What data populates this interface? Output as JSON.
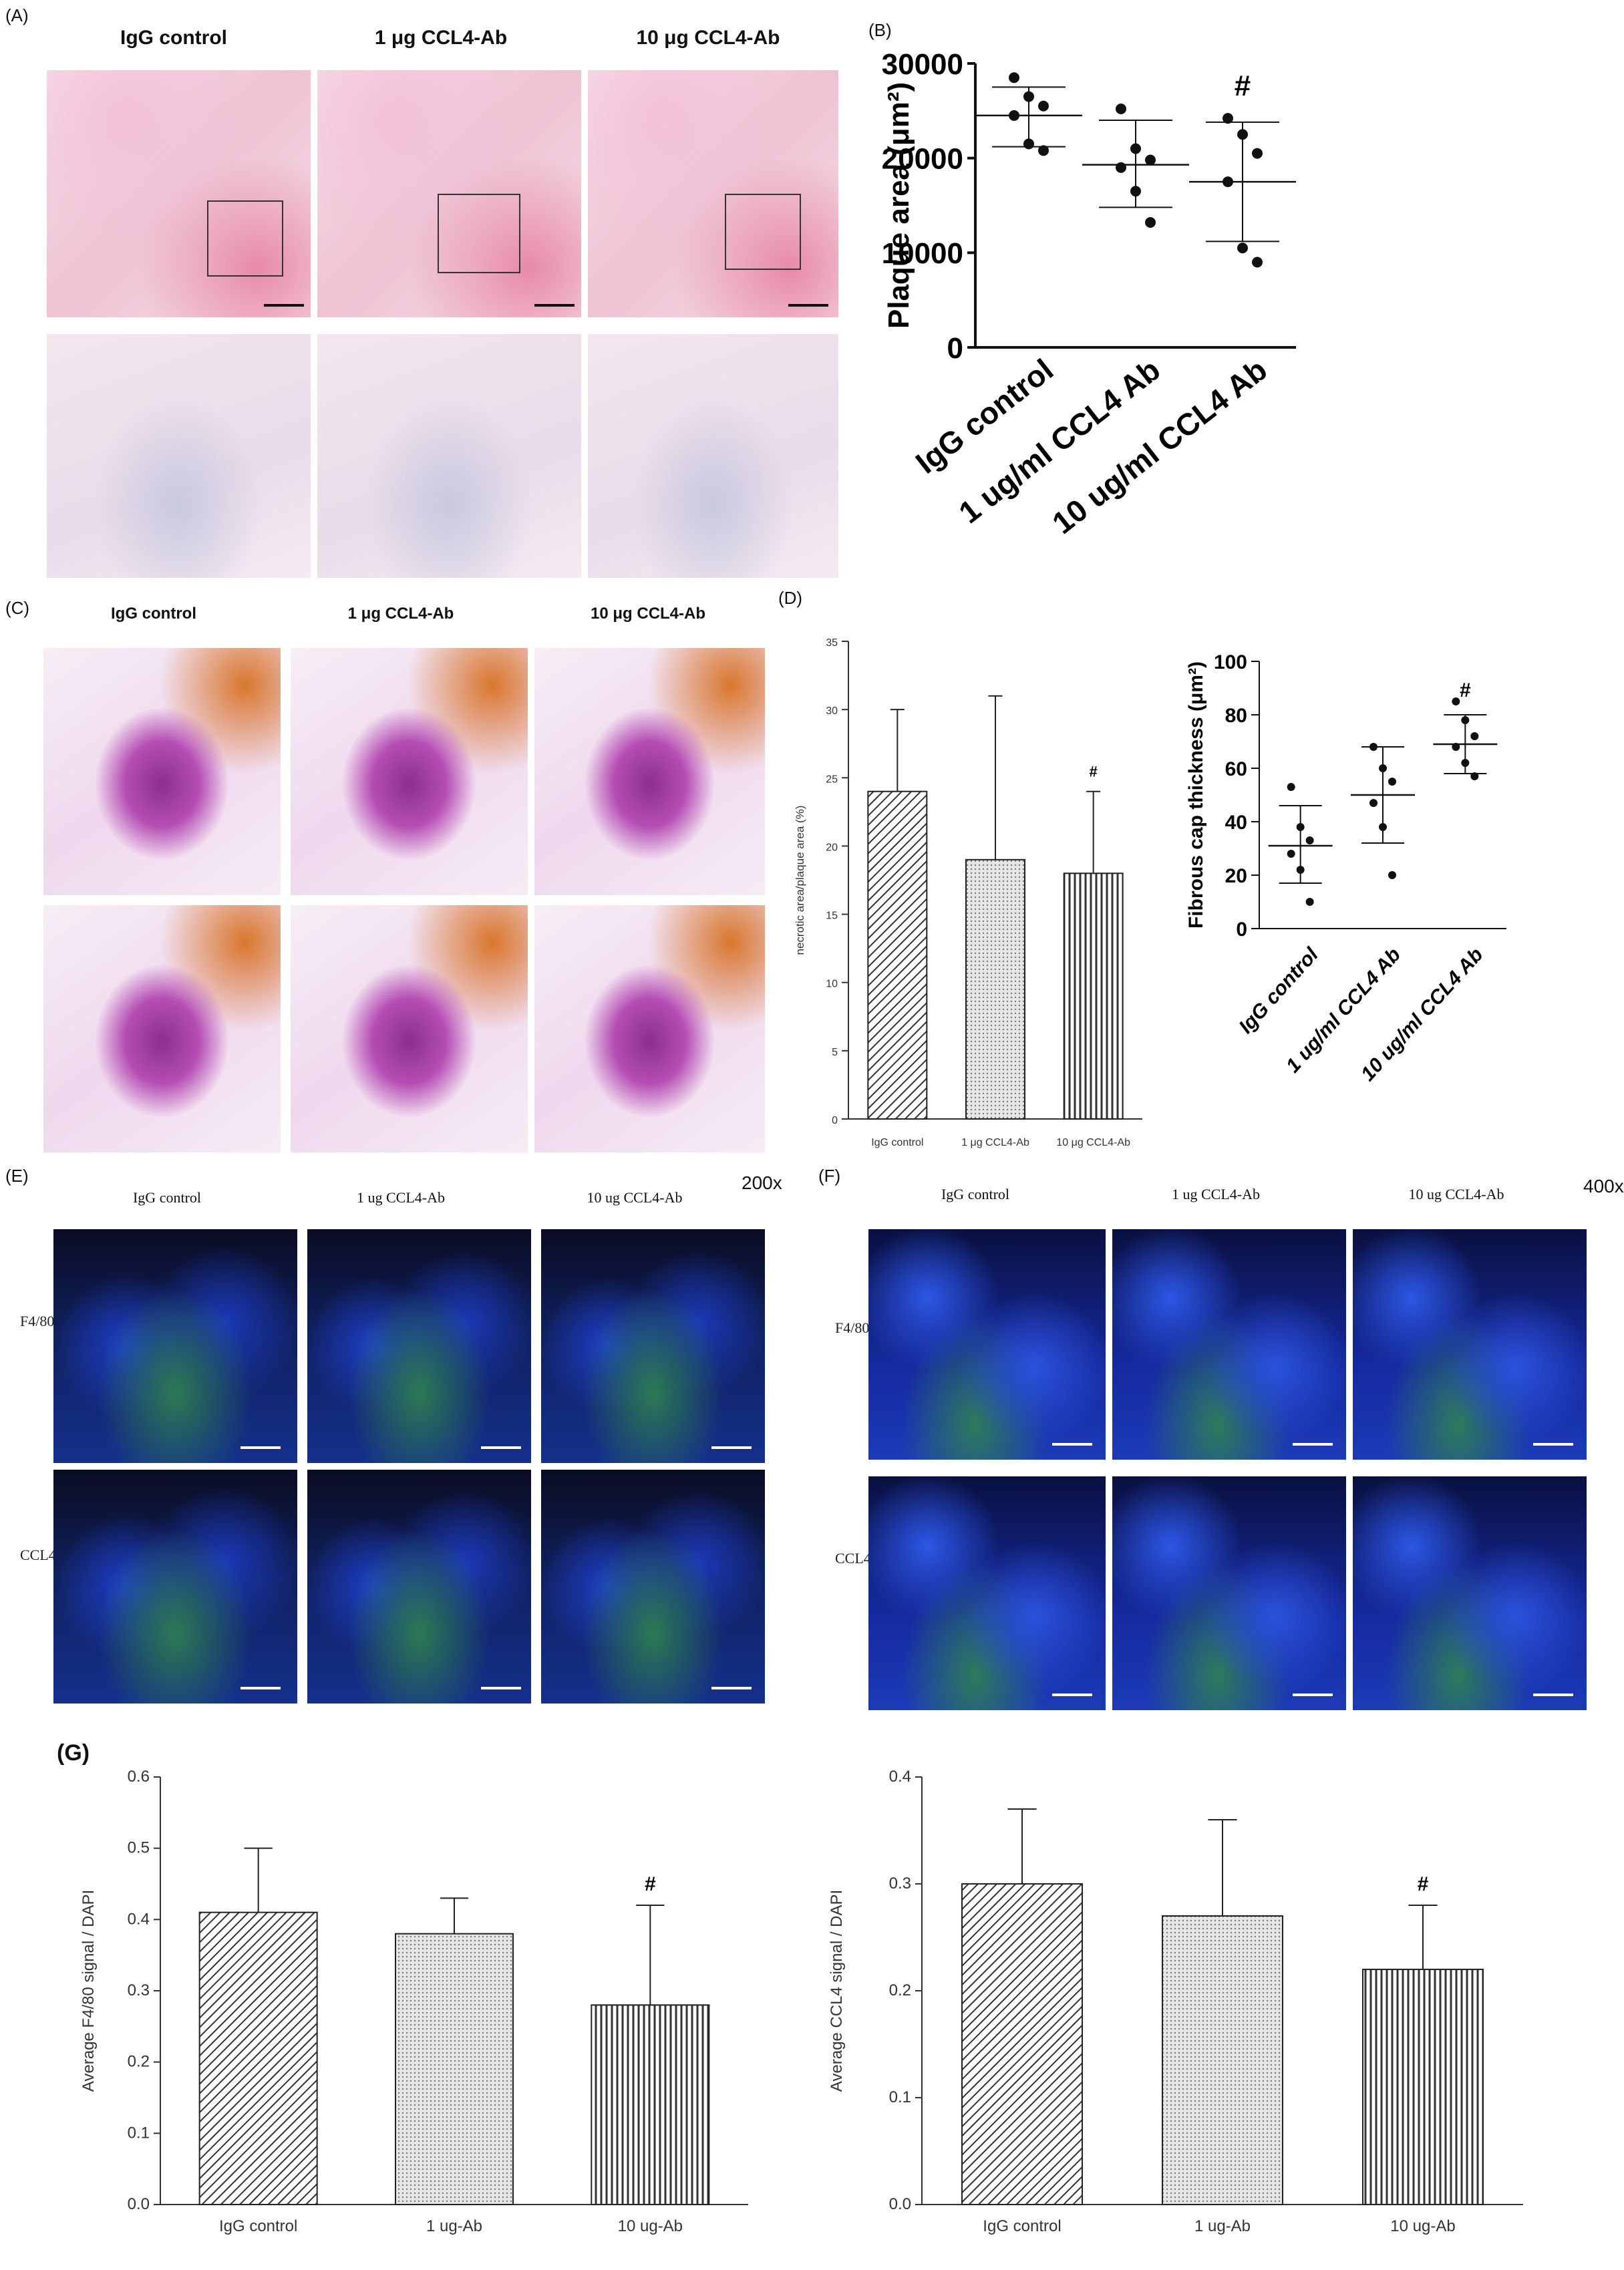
{
  "panel_A": {
    "label": "(A)",
    "groups": [
      "IgG control",
      "1 μg CCL4-Ab",
      "10 μg CCL4-Ab"
    ]
  },
  "panel_B": {
    "label": "(B)",
    "chart_data": {
      "type": "scatter",
      "ylabel": "Plaque area (μm²)",
      "ylim": [
        0,
        30000
      ],
      "yticks": [
        "0",
        "10000",
        "20000",
        "30000"
      ],
      "categories": [
        "IgG control",
        "1 ug/ml CCL4 Ab",
        "10 ug/ml CCL4 Ab"
      ],
      "points": [
        [
          28500,
          26500,
          25500,
          24500,
          21500,
          20800
        ],
        [
          25200,
          21000,
          19800,
          19000,
          16500,
          13200
        ],
        [
          24200,
          22500,
          20500,
          17500,
          10500,
          9000
        ]
      ],
      "mean": [
        24500,
        19300,
        17500
      ],
      "sd_upper": [
        27500,
        24000,
        23800
      ],
      "sd_lower": [
        21200,
        14800,
        11200
      ],
      "annotations": [
        "",
        "",
        "#"
      ]
    }
  },
  "panel_C": {
    "label": "(C)",
    "groups": [
      "IgG control",
      "1 μg CCL4-Ab",
      "10 μg CCL4-Ab"
    ]
  },
  "panel_D": {
    "label": "(D)",
    "chart_bar": {
      "type": "bar",
      "ylabel": "necrotic area/plaque area (%)",
      "ylim": [
        0,
        35
      ],
      "yticks": [
        "0",
        "5",
        "10",
        "15",
        "20",
        "25",
        "30",
        "35"
      ],
      "categories": [
        "IgG control",
        "1 μg CCL4-Ab",
        "10 μg CCL4-Ab"
      ],
      "values": [
        24,
        19,
        18
      ],
      "error_upper": [
        30,
        31,
        24
      ],
      "annotations": [
        "",
        "",
        "#"
      ]
    },
    "chart_scatter": {
      "type": "scatter",
      "ylabel": "Fibrous cap thickness (μm²)",
      "ylim": [
        0,
        100
      ],
      "yticks": [
        "0",
        "20",
        "40",
        "60",
        "80",
        "100"
      ],
      "categories": [
        "IgG control",
        "1 ug/ml CCL4 Ab",
        "10 ug/ml CCL4 Ab"
      ],
      "points": [
        [
          53,
          38,
          33,
          28,
          22,
          10
        ],
        [
          68,
          60,
          55,
          47,
          38,
          20
        ],
        [
          85,
          78,
          72,
          68,
          62,
          57
        ]
      ],
      "mean": [
        31,
        50,
        69
      ],
      "sd_upper": [
        46,
        68,
        80
      ],
      "sd_lower": [
        17,
        32,
        58
      ],
      "annotations": [
        "",
        "",
        "#"
      ]
    }
  },
  "panel_E": {
    "label": "(E)",
    "magnification": "200x",
    "groups": [
      "IgG control",
      "1 ug CCL4-Ab",
      "10 ug CCL4-Ab"
    ],
    "rows": [
      "F4/80",
      "CCL4"
    ]
  },
  "panel_F": {
    "label": "(F)",
    "magnification": "400x",
    "groups": [
      "IgG control",
      "1 ug CCL4-Ab",
      "10 ug CCL4-Ab"
    ],
    "rows": [
      "F4/80",
      "CCL4"
    ]
  },
  "panel_G": {
    "label": "(G)",
    "chart_left": {
      "type": "bar",
      "ylabel": "Average F4/80 signal / DAPI",
      "ylim": [
        0,
        0.6
      ],
      "yticks": [
        "0.0",
        "0.1",
        "0.2",
        "0.3",
        "0.4",
        "0.5",
        "0.6"
      ],
      "categories": [
        "IgG control",
        "1 ug-Ab",
        "10 ug-Ab"
      ],
      "values": [
        0.41,
        0.38,
        0.28
      ],
      "error_upper": [
        0.5,
        0.43,
        0.42
      ],
      "annotations": [
        "",
        "",
        "#"
      ]
    },
    "chart_right": {
      "type": "bar",
      "ylabel": "Average CCL4 signal / DAPI",
      "ylim": [
        0,
        0.4
      ],
      "yticks": [
        "0.0",
        "0.1",
        "0.2",
        "0.3",
        "0.4"
      ],
      "categories": [
        "IgG control",
        "1 ug-Ab",
        "10 ug-Ab"
      ],
      "values": [
        0.3,
        0.27,
        0.22
      ],
      "error_upper": [
        0.37,
        0.36,
        0.28
      ],
      "annotations": [
        "",
        "",
        "#"
      ]
    }
  }
}
